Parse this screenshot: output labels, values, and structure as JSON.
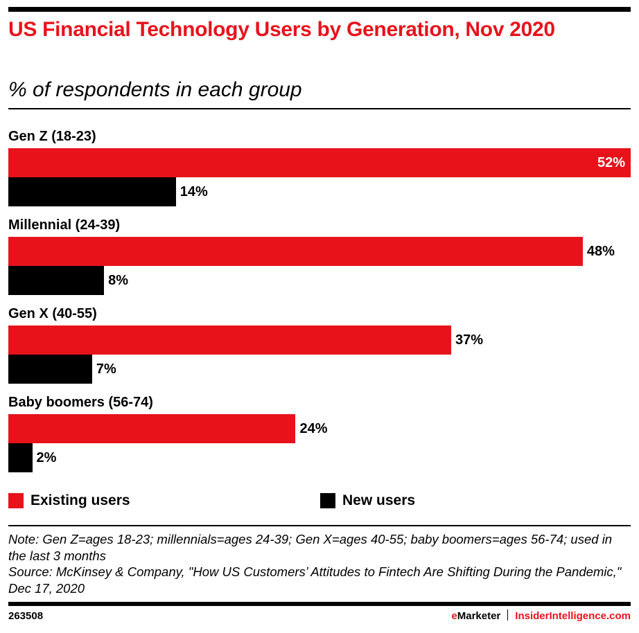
{
  "header": {
    "title": "US Financial Technology Users by Generation, Nov 2020",
    "subtitle": "% of respondents in each group"
  },
  "colors": {
    "existing": "#e8121b",
    "new": "#000000",
    "accent": "#e8121b"
  },
  "chart_data": {
    "type": "bar",
    "orientation": "horizontal",
    "title": "US Financial Technology Users by Generation, Nov 2020",
    "subtitle": "% of respondents in each group",
    "categories": [
      "Gen Z (18-23)",
      "Millennial (24-39)",
      "Gen X (40-55)",
      "Baby boomers (56-74)"
    ],
    "series": [
      {
        "name": "Existing users",
        "values": [
          52,
          48,
          37,
          24
        ],
        "labels": [
          "52%",
          "48%",
          "37%",
          "24%"
        ]
      },
      {
        "name": "New users",
        "values": [
          14,
          8,
          7,
          2
        ],
        "labels": [
          "14%",
          "8%",
          "7%",
          "2%"
        ]
      }
    ],
    "xlim": [
      0,
      52
    ],
    "grid": false,
    "legend": "bottom",
    "unit": "%"
  },
  "notes": {
    "note": "Note: Gen Z=ages 18-23; millennials=ages 24-39; Gen X=ages 40-55; baby boomers=ages 56-74; used in the last 3 months",
    "source": "Source: McKinsey & Company, \"How US Customers’ Attitudes to Fintech Are Shifting During the Pandemic,\" Dec 17, 2020"
  },
  "footer": {
    "chart_id": "263508",
    "brand_e": "e",
    "brand_rest": "Marketer",
    "site": "InsiderIntelligence.com"
  }
}
